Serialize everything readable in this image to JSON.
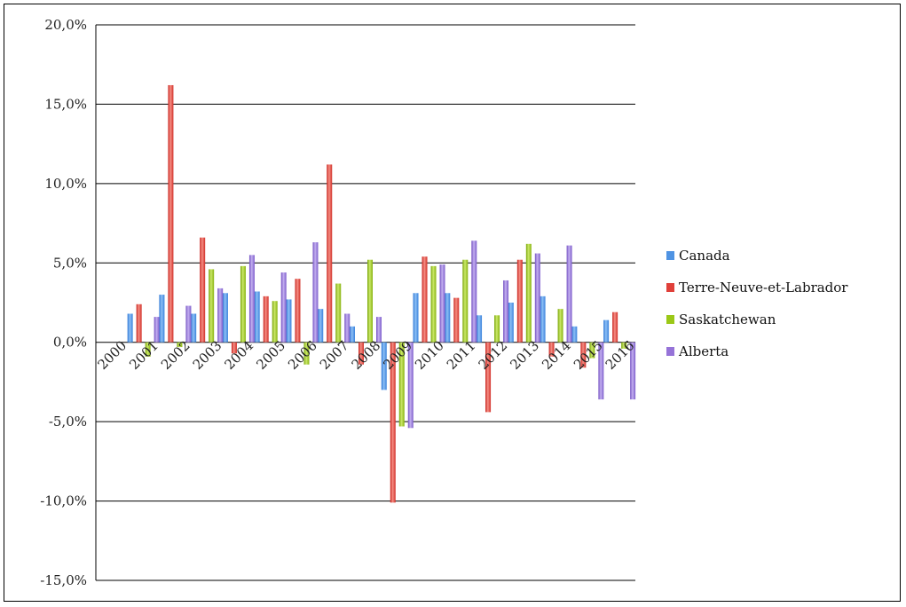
{
  "chart_data": {
    "type": "bar",
    "categories": [
      "2000",
      "2001",
      "2002",
      "2003",
      "2004",
      "2005",
      "2006",
      "2007",
      "2008",
      "2009",
      "2010",
      "2011",
      "2012",
      "2013",
      "2014",
      "2015",
      "2016"
    ],
    "ylim": [
      -15,
      20
    ],
    "yticks": [
      "-15,0%",
      "-10,0%",
      "-5,0%",
      "0,0%",
      "5,0%",
      "10,0%",
      "15,0%",
      "20,0%"
    ],
    "grid": true,
    "legend_position": "right",
    "series": [
      {
        "name": "Canada",
        "color": "#4f93e3",
        "values": [
          null,
          1.8,
          3.0,
          1.8,
          3.1,
          3.2,
          2.7,
          2.1,
          1.0,
          -3.0,
          3.1,
          3.1,
          1.7,
          2.5,
          2.9,
          1.0,
          1.4
        ]
      },
      {
        "name": "Terre-Neuve-et-Labrador",
        "color": "#e0403a",
        "values": [
          null,
          2.4,
          16.2,
          6.6,
          -0.7,
          2.9,
          4.0,
          11.2,
          -1.4,
          -10.1,
          5.4,
          2.8,
          -4.4,
          5.2,
          -0.9,
          -1.6,
          1.9
        ]
      },
      {
        "name": "Saskatchewan",
        "color": "#9bc817",
        "values": [
          null,
          -0.9,
          -0.3,
          4.6,
          4.8,
          2.6,
          -1.4,
          3.7,
          5.2,
          -5.3,
          4.8,
          5.2,
          1.7,
          6.2,
          2.1,
          -1.0,
          -0.4
        ]
      },
      {
        "name": "Alberta",
        "color": "#9673d8",
        "values": [
          null,
          1.6,
          2.3,
          3.4,
          5.5,
          4.4,
          6.3,
          1.8,
          1.6,
          -5.4,
          4.9,
          6.4,
          3.9,
          5.6,
          6.1,
          -3.6,
          -3.6
        ]
      }
    ]
  }
}
